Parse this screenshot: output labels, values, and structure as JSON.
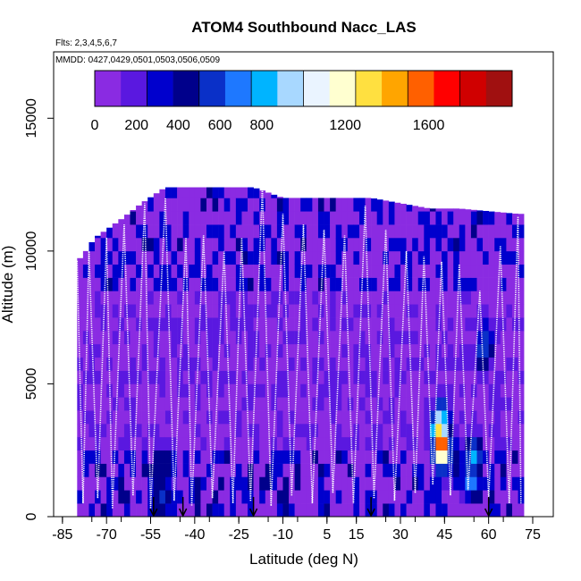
{
  "chart_data": {
    "type": "heatmap",
    "title": "ATOM4 Southbound Nacc_LAS",
    "subtitle_flights": "Flts: 2,3,4,5,6,7",
    "subtitle_dates": "MMDD: 0427,0429,0501,0503,0506,0509",
    "xlabel": "Latitude (deg N)",
    "ylabel": "Altitude (m)",
    "xlim": [
      -88,
      82
    ],
    "ylim": [
      0,
      17500
    ],
    "x_ticks": [
      -85,
      -70,
      -55,
      -40,
      -25,
      -10,
      5,
      15,
      30,
      45,
      60,
      75
    ],
    "x_tick_labels": [
      "-85",
      "-70",
      "-55",
      "-40",
      "-25",
      "-10",
      "5",
      "15",
      "30",
      "45",
      "60",
      "75"
    ],
    "y_ticks": [
      0,
      5000,
      10000,
      15000
    ],
    "y_tick_labels": [
      "0",
      "5000",
      "10000",
      "15000"
    ],
    "colorbar": {
      "range": [
        0,
        2000
      ],
      "ticks": [
        0,
        200,
        400,
        600,
        800,
        1200,
        1600
      ],
      "tick_labels": [
        "0",
        "200",
        "400",
        "600",
        "800",
        "1200",
        "1600"
      ],
      "colors": [
        "#8a2be2",
        "#5a18e0",
        "#0000cd",
        "#00008b",
        "#0a30c8",
        "#1e78ff",
        "#00b4ff",
        "#a8d8ff",
        "#eaf4ff",
        "#ffffd0",
        "#ffe040",
        "#ffa500",
        "#ff6000",
        "#ff0000",
        "#d00000",
        "#a01010"
      ]
    },
    "altitude_envelope": [
      {
        "lat": -80,
        "max_alt": 9600
      },
      {
        "lat": -77,
        "max_alt": 10000
      },
      {
        "lat": -74,
        "max_alt": 10500
      },
      {
        "lat": -70,
        "max_alt": 10800
      },
      {
        "lat": -65,
        "max_alt": 11200
      },
      {
        "lat": -58,
        "max_alt": 11800
      },
      {
        "lat": -50,
        "max_alt": 12400
      },
      {
        "lat": -40,
        "max_alt": 12400
      },
      {
        "lat": -30,
        "max_alt": 12400
      },
      {
        "lat": -20,
        "max_alt": 12400
      },
      {
        "lat": -10,
        "max_alt": 12000
      },
      {
        "lat": 0,
        "max_alt": 12000
      },
      {
        "lat": 10,
        "max_alt": 12000
      },
      {
        "lat": 20,
        "max_alt": 12000
      },
      {
        "lat": 30,
        "max_alt": 11800
      },
      {
        "lat": 40,
        "max_alt": 11600
      },
      {
        "lat": 50,
        "max_alt": 11600
      },
      {
        "lat": 60,
        "max_alt": 11500
      },
      {
        "lat": 70,
        "max_alt": 11400
      }
    ],
    "hotspots": [
      {
        "lat": 43,
        "alt": 2400,
        "value": 1700
      },
      {
        "lat": 42,
        "alt": 3000,
        "value": 1300
      },
      {
        "lat": 43,
        "alt": 3500,
        "value": 900
      },
      {
        "lat": 54,
        "alt": 2000,
        "value": 800
      },
      {
        "lat": 53,
        "alt": 1200,
        "value": 750
      },
      {
        "lat": 58,
        "alt": 6200,
        "value": 650
      },
      {
        "lat": 57,
        "alt": 5800,
        "value": 600
      },
      {
        "lat": -52,
        "alt": 600,
        "value": 600
      },
      {
        "lat": -51,
        "alt": 1500,
        "value": 500
      },
      {
        "lat": 48,
        "alt": 1800,
        "value": 500
      }
    ],
    "flight_tracks": [
      {
        "name": "flight-track-1",
        "points": [
          [
            -86,
            9500
          ],
          [
            -80,
            9600
          ],
          [
            -78,
            500
          ],
          [
            -76,
            10000
          ],
          [
            -73,
            700
          ]
        ]
      },
      {
        "name": "flight-track-2",
        "points": [
          [
            -73,
            700
          ],
          [
            -70,
            10500
          ],
          [
            -68,
            300
          ],
          [
            -64,
            11000
          ],
          [
            -61,
            800
          ]
        ]
      },
      {
        "name": "flight-track-3",
        "points": [
          [
            -61,
            800
          ],
          [
            -57,
            11800
          ],
          [
            -55,
            300
          ],
          [
            -50,
            12000
          ],
          [
            -47,
            600
          ]
        ]
      },
      {
        "name": "flight-track-4",
        "points": [
          [
            -47,
            600
          ],
          [
            -43,
            10500
          ],
          [
            -41,
            400
          ],
          [
            -37,
            10600
          ],
          [
            -34,
            700
          ]
        ]
      },
      {
        "name": "flight-track-5",
        "points": [
          [
            -34,
            700
          ],
          [
            -30,
            10000
          ],
          [
            -27,
            500
          ],
          [
            -24,
            10500
          ],
          [
            -21,
            600
          ]
        ]
      },
      {
        "name": "flight-track-6",
        "points": [
          [
            -21,
            600
          ],
          [
            -17,
            12400
          ],
          [
            -14,
            400
          ],
          [
            -10,
            11400
          ],
          [
            -7,
            800
          ]
        ]
      },
      {
        "name": "flight-track-7",
        "points": [
          [
            -7,
            800
          ],
          [
            -3,
            11000
          ],
          [
            0,
            500
          ],
          [
            4,
            10800
          ],
          [
            7,
            900
          ]
        ]
      },
      {
        "name": "flight-track-8",
        "points": [
          [
            7,
            900
          ],
          [
            11,
            10600
          ],
          [
            14,
            500
          ],
          [
            18,
            11700
          ],
          [
            21,
            700
          ]
        ]
      },
      {
        "name": "flight-track-9",
        "points": [
          [
            21,
            700
          ],
          [
            25,
            10800
          ],
          [
            28,
            600
          ],
          [
            32,
            10000
          ],
          [
            35,
            900
          ]
        ]
      },
      {
        "name": "flight-track-10",
        "points": [
          [
            35,
            900
          ],
          [
            38,
            9800
          ],
          [
            41,
            1200
          ],
          [
            44,
            9600
          ],
          [
            47,
            800
          ]
        ]
      },
      {
        "name": "flight-track-11",
        "points": [
          [
            47,
            800
          ],
          [
            50,
            9500
          ],
          [
            53,
            1000
          ],
          [
            57,
            8500
          ],
          [
            60,
            700
          ]
        ]
      },
      {
        "name": "flight-track-12",
        "points": [
          [
            60,
            700
          ],
          [
            64,
            10200
          ],
          [
            67,
            500
          ],
          [
            70,
            11300
          ],
          [
            71,
            500
          ]
        ]
      }
    ],
    "profile_markers": [
      -54,
      -44,
      -20,
      20,
      60
    ]
  }
}
